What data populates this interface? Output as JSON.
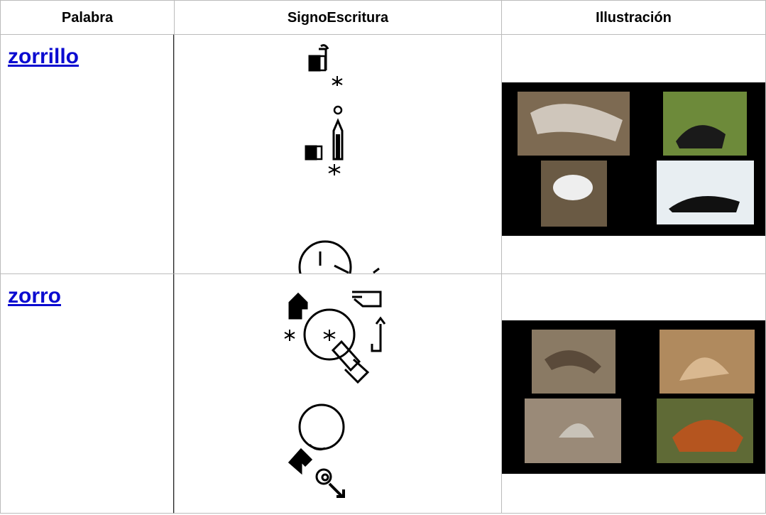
{
  "header": {
    "columns": [
      "Palabra",
      "SignoEscritura",
      "Illustración"
    ]
  },
  "rows": [
    {
      "word": "zorrillo"
    },
    {
      "word": "zorro"
    }
  ]
}
